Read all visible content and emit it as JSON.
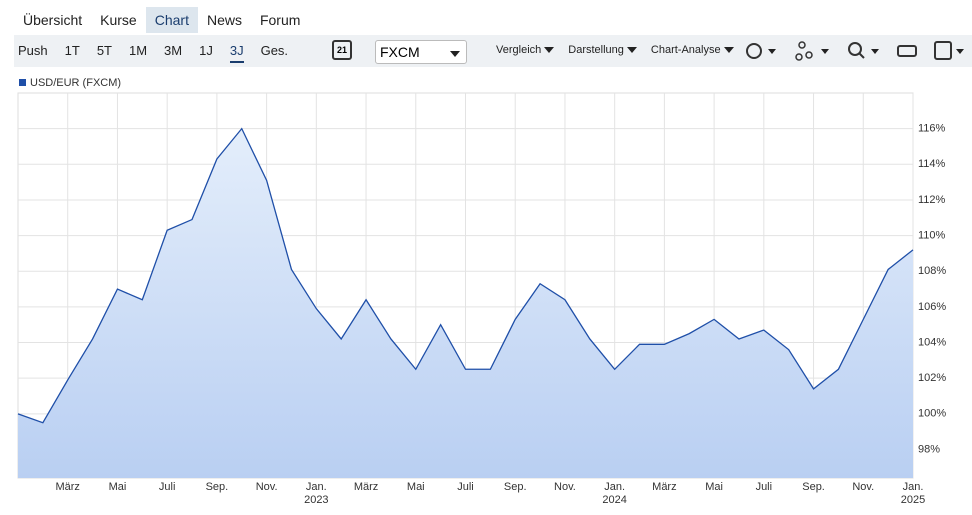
{
  "nav": {
    "tabs": [
      "Übersicht",
      "Kurse",
      "Chart",
      "News",
      "Forum"
    ]
  },
  "toolbar": {
    "ranges": [
      "Push",
      "1T",
      "5T",
      "1M",
      "3M",
      "1J",
      "3J",
      "Ges."
    ],
    "calendar": "21",
    "exchange": "FXCM",
    "menus": [
      "Vergleich",
      "Darstellung",
      "Chart-Analyse"
    ]
  },
  "chart_data": {
    "type": "area",
    "x": [
      "2022-01",
      "2022-02",
      "2022-03",
      "2022-04",
      "2022-05",
      "2022-06",
      "2022-07",
      "2022-08",
      "2022-09",
      "2022-10",
      "2022-11",
      "2022-12",
      "2023-01",
      "2023-02",
      "2023-03",
      "2023-04",
      "2023-05",
      "2023-06",
      "2023-07",
      "2023-08",
      "2023-09",
      "2023-10",
      "2023-11",
      "2023-12",
      "2024-01",
      "2024-02",
      "2024-03",
      "2024-04",
      "2024-05",
      "2024-06",
      "2024-07",
      "2024-08",
      "2024-09",
      "2024-10",
      "2024-11",
      "2024-12",
      "2025-01"
    ],
    "series": [
      {
        "name": "USD/EUR (FXCM)",
        "color": "#1f4fa8",
        "values": [
          100,
          99.5,
          101.9,
          104.2,
          107,
          106.4,
          110.3,
          110.9,
          114.3,
          116,
          113.1,
          108.1,
          105.9,
          104.2,
          106.4,
          104.2,
          102.5,
          105,
          102.5,
          102.5,
          105.3,
          107.3,
          106.4,
          104.2,
          102.5,
          103.9,
          103.9,
          104.5,
          105.3,
          104.2,
          104.7,
          103.6,
          101.4,
          102.5,
          105.3,
          108.1,
          109.2
        ]
      }
    ],
    "xlim": [
      "2022-01",
      "2025-01"
    ],
    "xticks": [
      {
        "value": "2022-03",
        "label": "März"
      },
      {
        "value": "2022-05",
        "label": "Mai"
      },
      {
        "value": "2022-07",
        "label": "Juli"
      },
      {
        "value": "2022-09",
        "label": "Sep."
      },
      {
        "value": "2022-11",
        "label": "Nov."
      },
      {
        "value": "2023-01",
        "label": "Jan. 2023"
      },
      {
        "value": "2023-03",
        "label": "März"
      },
      {
        "value": "2023-05",
        "label": "Mai"
      },
      {
        "value": "2023-07",
        "label": "Juli"
      },
      {
        "value": "2023-09",
        "label": "Sep."
      },
      {
        "value": "2023-11",
        "label": "Nov."
      },
      {
        "value": "2024-01",
        "label": "Jan. 2024"
      },
      {
        "value": "2024-03",
        "label": "März"
      },
      {
        "value": "2024-05",
        "label": "Mai"
      },
      {
        "value": "2024-07",
        "label": "Juli"
      },
      {
        "value": "2024-09",
        "label": "Sep."
      },
      {
        "value": "2024-11",
        "label": "Nov."
      },
      {
        "value": "2025-01",
        "label": "Jan. 2025"
      }
    ],
    "ylim": [
      96.4,
      118
    ],
    "yticks": [
      {
        "value": 98,
        "label": "98%"
      },
      {
        "value": 100,
        "label": "100%"
      },
      {
        "value": 102,
        "label": "102%"
      },
      {
        "value": 104,
        "label": "104%"
      },
      {
        "value": 106,
        "label": "106%"
      },
      {
        "value": 108,
        "label": "108%"
      },
      {
        "value": 110,
        "label": "110%"
      },
      {
        "value": 112,
        "label": "112%"
      },
      {
        "value": 114,
        "label": "114%"
      },
      {
        "value": 116,
        "label": "116%"
      }
    ],
    "grid": true
  }
}
